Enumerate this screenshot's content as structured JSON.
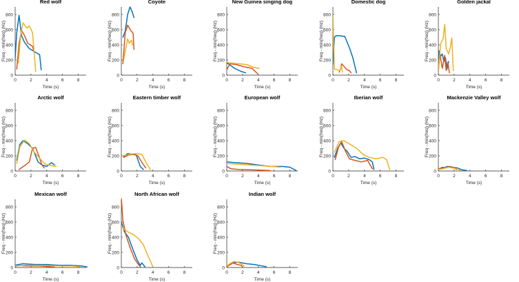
{
  "figure": {
    "xlabel": "Time (s)",
    "ylabel": "Freq - min(freq) (Hz)",
    "colors": [
      "#0072BD",
      "#D95319",
      "#EDB120"
    ]
  },
  "chart_data": [
    {
      "type": "line",
      "title": "Red wolf",
      "xlim": [
        0,
        9
      ],
      "ylim": [
        0,
        900
      ],
      "xticks": [
        0,
        2,
        4,
        6,
        8
      ],
      "yticks": [
        0,
        200,
        400,
        600,
        800
      ],
      "series": [
        {
          "x": [
            0,
            0.2,
            0.5,
            0.8,
            1.2,
            1.8,
            2.6,
            3.1,
            3.3
          ],
          "y": [
            220,
            560,
            790,
            520,
            430,
            350,
            300,
            270,
            70
          ]
        },
        {
          "x": [
            0.2,
            0.5,
            0.8,
            1.2,
            1.6,
            2.2,
            2.4
          ],
          "y": [
            80,
            420,
            590,
            520,
            420,
            380,
            300
          ]
        },
        {
          "x": [
            0.4,
            0.7,
            1.0,
            1.5,
            1.8,
            2.2,
            2.6
          ],
          "y": [
            160,
            530,
            690,
            620,
            650,
            560,
            50
          ]
        }
      ]
    },
    {
      "type": "line",
      "title": "Coyote",
      "xlim": [
        0,
        9
      ],
      "ylim": [
        0,
        900
      ],
      "xticks": [
        0,
        2,
        4,
        6,
        8
      ],
      "yticks": [
        0,
        200,
        400,
        600,
        800
      ],
      "series": [
        {
          "x": [
            0.2,
            0.5,
            0.8,
            1.1,
            1.4,
            1.6
          ],
          "y": [
            500,
            580,
            800,
            900,
            830,
            760
          ]
        },
        {
          "x": [
            0.2,
            0.5,
            0.8,
            1.2,
            1.5,
            1.6
          ],
          "y": [
            150,
            560,
            660,
            590,
            550,
            340
          ]
        },
        {
          "x": [
            0.3,
            0.5,
            0.8,
            1.0,
            1.3,
            1.4
          ],
          "y": [
            200,
            310,
            480,
            420,
            460,
            400
          ]
        }
      ]
    },
    {
      "type": "line",
      "title": "New Guinea singing dog",
      "xlim": [
        0,
        9
      ],
      "ylim": [
        0,
        900
      ],
      "xticks": [
        0,
        2,
        4,
        6,
        8
      ],
      "yticks": [
        0,
        200,
        400,
        600,
        800
      ],
      "series": [
        {
          "x": [
            0,
            0.2,
            1.0,
            1.8,
            2.4
          ],
          "y": [
            160,
            150,
            90,
            50,
            30
          ]
        },
        {
          "x": [
            0,
            0.4,
            1.2,
            2.2,
            3.2,
            3.9
          ],
          "y": [
            70,
            150,
            140,
            110,
            90,
            20
          ]
        },
        {
          "x": [
            0,
            0.4,
            1.5,
            2.5,
            3.5,
            4.1
          ],
          "y": [
            170,
            160,
            150,
            140,
            100,
            90
          ]
        }
      ]
    },
    {
      "type": "line",
      "title": "Domestic dog",
      "xlim": [
        0,
        9
      ],
      "ylim": [
        0,
        900
      ],
      "xticks": [
        0,
        2,
        4,
        6,
        8
      ],
      "yticks": [
        0,
        200,
        400,
        600,
        800
      ],
      "series": [
        {
          "x": [
            0,
            0.2,
            0.4,
            0.8,
            1.5,
            2.1,
            2.5,
            3.0
          ],
          "y": [
            140,
            500,
            520,
            520,
            510,
            360,
            240,
            30
          ]
        },
        {
          "x": [
            0.8,
            1.0,
            1.1,
            1.8,
            2.1,
            2.3
          ],
          "y": [
            40,
            90,
            150,
            70,
            60,
            30
          ]
        },
        {
          "x": [
            0,
            0.1,
            0.2,
            0.9,
            1.1,
            1.2
          ],
          "y": [
            790,
            450,
            80,
            60,
            120,
            40
          ]
        }
      ]
    },
    {
      "type": "line",
      "title": "Golden jackal",
      "xlim": [
        0,
        9
      ],
      "ylim": [
        0,
        900
      ],
      "xticks": [
        0,
        2,
        4,
        6,
        8
      ],
      "yticks": [
        0,
        200,
        400,
        600,
        800
      ],
      "series": [
        {
          "x": [
            0,
            0.1,
            0.3,
            0.5,
            0.7,
            0.9,
            1.1,
            1.3
          ],
          "y": [
            90,
            320,
            250,
            280,
            180,
            230,
            80,
            180
          ]
        },
        {
          "x": [
            0,
            0.2,
            0.5,
            0.8,
            1.0,
            1.2,
            1.4
          ],
          "y": [
            40,
            280,
            90,
            260,
            60,
            170,
            30
          ]
        },
        {
          "x": [
            0,
            0.3,
            0.6,
            0.8,
            1.0,
            1.3,
            1.5,
            1.7,
            1.9
          ],
          "y": [
            50,
            420,
            480,
            670,
            350,
            280,
            360,
            490,
            60
          ]
        }
      ]
    },
    {
      "type": "line",
      "title": "Arctic wolf",
      "xlim": [
        0,
        9
      ],
      "ylim": [
        0,
        900
      ],
      "xticks": [
        0,
        2,
        4,
        6,
        8
      ],
      "yticks": [
        0,
        200,
        400,
        600,
        800
      ],
      "series": [
        {
          "x": [
            0.2,
            0.6,
            1.0,
            1.6,
            2.2,
            2.9,
            3.4,
            4.0,
            4.6,
            5.0
          ],
          "y": [
            140,
            350,
            400,
            360,
            300,
            120,
            80,
            60,
            110,
            80
          ]
        },
        {
          "x": [
            0.5,
            1.2,
            1.8,
            2.2,
            2.6,
            3.0,
            3.4,
            3.7
          ],
          "y": [
            20,
            70,
            120,
            300,
            310,
            200,
            80,
            40
          ]
        },
        {
          "x": [
            0.2,
            0.6,
            1.2,
            1.8,
            2.4,
            3.0,
            3.8,
            4.6,
            5.2
          ],
          "y": [
            100,
            320,
            410,
            360,
            250,
            180,
            90,
            70,
            60
          ]
        }
      ]
    },
    {
      "type": "line",
      "title": "Eastern timber wolf",
      "xlim": [
        0,
        9
      ],
      "ylim": [
        0,
        900
      ],
      "xticks": [
        0,
        2,
        4,
        6,
        8
      ],
      "yticks": [
        0,
        200,
        400,
        600,
        800
      ],
      "series": [
        {
          "x": [
            0.3,
            0.8,
            1.4,
            1.9,
            2.4,
            2.8
          ],
          "y": [
            190,
            230,
            220,
            210,
            60,
            20
          ]
        },
        {
          "x": [
            0.3,
            0.9,
            1.6,
            2.1,
            2.7,
            3.1
          ],
          "y": [
            180,
            210,
            220,
            200,
            100,
            40
          ]
        },
        {
          "x": [
            0.2,
            1.0,
            1.8,
            2.6,
            3.2,
            3.7
          ],
          "y": [
            200,
            220,
            230,
            220,
            100,
            20
          ]
        }
      ]
    },
    {
      "type": "line",
      "title": "European wolf",
      "xlim": [
        0,
        9
      ],
      "ylim": [
        0,
        900
      ],
      "xticks": [
        0,
        2,
        4,
        6,
        8
      ],
      "yticks": [
        0,
        200,
        400,
        600,
        800
      ],
      "series": [
        {
          "x": [
            0,
            1.0,
            2.5,
            4.0,
            5.5,
            7.0,
            8.0,
            8.8
          ],
          "y": [
            120,
            110,
            100,
            80,
            60,
            60,
            50,
            5
          ]
        },
        {
          "x": [
            0,
            0.5,
            1.5,
            3.0,
            4.5,
            5.5
          ],
          "y": [
            60,
            30,
            20,
            15,
            10,
            5
          ]
        },
        {
          "x": [
            0,
            1.2,
            2.8,
            4.3,
            5.8,
            6.8
          ],
          "y": [
            100,
            90,
            80,
            70,
            60,
            50
          ]
        }
      ]
    },
    {
      "type": "line",
      "title": "Iberian wolf",
      "xlim": [
        0,
        9
      ],
      "ylim": [
        0,
        900
      ],
      "xticks": [
        0,
        2,
        4,
        6,
        8
      ],
      "yticks": [
        0,
        200,
        400,
        600,
        800
      ],
      "series": [
        {
          "x": [
            0.2,
            0.6,
            1.0,
            1.4,
            1.8,
            2.3,
            2.8,
            3.4,
            4.0,
            4.6,
            5.0,
            5.2
          ],
          "y": [
            180,
            300,
            370,
            300,
            260,
            180,
            190,
            160,
            170,
            150,
            120,
            20
          ]
        },
        {
          "x": [
            0.3,
            0.7,
            1.1,
            1.6,
            2.1,
            2.8,
            3.6,
            4.4,
            5.0
          ],
          "y": [
            150,
            310,
            390,
            260,
            160,
            140,
            120,
            140,
            30
          ]
        },
        {
          "x": [
            0.2,
            0.8,
            1.4,
            2.2,
            3.0,
            3.8,
            4.6,
            5.5,
            6.3,
            6.8,
            7.2
          ],
          "y": [
            250,
            390,
            400,
            350,
            300,
            220,
            180,
            160,
            180,
            150,
            20
          ]
        }
      ]
    },
    {
      "type": "line",
      "title": "Mackenzie Valley wolf",
      "xlim": [
        0,
        9
      ],
      "ylim": [
        0,
        900
      ],
      "xticks": [
        0,
        2,
        4,
        6,
        8
      ],
      "yticks": [
        0,
        200,
        400,
        600,
        800
      ],
      "series": [
        {
          "x": [
            0,
            0.6,
            1.2,
            1.8,
            2.4,
            3.0,
            3.6
          ],
          "y": [
            30,
            40,
            60,
            50,
            40,
            15,
            5
          ]
        },
        {
          "x": [
            0,
            0.5,
            1.0,
            1.5,
            2.0,
            2.3
          ],
          "y": [
            20,
            50,
            40,
            60,
            40,
            20
          ]
        },
        {
          "x": [
            0,
            0.6,
            1.2,
            1.8,
            2.4,
            2.8
          ],
          "y": [
            20,
            30,
            50,
            40,
            30,
            10
          ]
        }
      ]
    },
    {
      "type": "line",
      "title": "Mexican wolf",
      "xlim": [
        0,
        9
      ],
      "ylim": [
        0,
        900
      ],
      "xticks": [
        0,
        2,
        4,
        6,
        8
      ],
      "yticks": [
        0,
        200,
        400,
        600,
        800
      ],
      "series": [
        {
          "x": [
            0,
            1.0,
            2.5,
            4.0,
            5.5,
            7.0,
            8.5,
            9.2
          ],
          "y": [
            30,
            50,
            40,
            40,
            30,
            30,
            20,
            5
          ]
        },
        {
          "x": [
            0,
            0.6,
            1.5,
            3.0,
            4.5,
            5.0
          ],
          "y": [
            20,
            25,
            20,
            20,
            10,
            5
          ]
        },
        {
          "x": [
            0,
            1.2,
            2.6,
            4.2,
            5.8,
            7.2,
            8.2
          ],
          "y": [
            20,
            30,
            30,
            25,
            20,
            20,
            10
          ]
        }
      ]
    },
    {
      "type": "line",
      "title": "North African wolf",
      "xlim": [
        0,
        9
      ],
      "ylim": [
        0,
        900
      ],
      "xticks": [
        0,
        2,
        4,
        6,
        8
      ],
      "yticks": [
        0,
        200,
        400,
        600,
        800
      ],
      "series": [
        {
          "x": [
            0,
            0.4,
            0.9,
            1.5,
            2.0,
            2.4,
            2.6,
            3.0
          ],
          "y": [
            600,
            470,
            400,
            230,
            100,
            30,
            60,
            10
          ]
        },
        {
          "x": [
            0,
            0.2,
            0.6,
            1.2,
            1.7,
            2.1,
            2.4
          ],
          "y": [
            920,
            620,
            420,
            240,
            110,
            50,
            10
          ]
        },
        {
          "x": [
            0,
            0.4,
            1.0,
            1.6,
            2.2,
            2.8,
            3.4,
            4.0
          ],
          "y": [
            550,
            500,
            460,
            430,
            380,
            300,
            150,
            10
          ]
        }
      ]
    },
    {
      "type": "line",
      "title": "Indian wolf",
      "xlim": [
        0,
        9
      ],
      "ylim": [
        0,
        900
      ],
      "xticks": [
        0,
        2,
        4,
        6,
        8
      ],
      "yticks": [
        0,
        200,
        400,
        600,
        800
      ],
      "series": [
        {
          "x": [
            0,
            0.6,
            1.5,
            2.5,
            3.5,
            4.5,
            5.0
          ],
          "y": [
            20,
            60,
            70,
            50,
            40,
            20,
            10
          ]
        },
        {
          "x": [
            0,
            0.3,
            0.8,
            1.3,
            1.8,
            2.0
          ],
          "y": [
            10,
            30,
            60,
            40,
            30,
            10
          ]
        },
        {
          "x": [
            0,
            0.4,
            0.9,
            1.4,
            1.8,
            2.2
          ],
          "y": [
            20,
            50,
            80,
            70,
            50,
            20
          ]
        }
      ]
    }
  ]
}
